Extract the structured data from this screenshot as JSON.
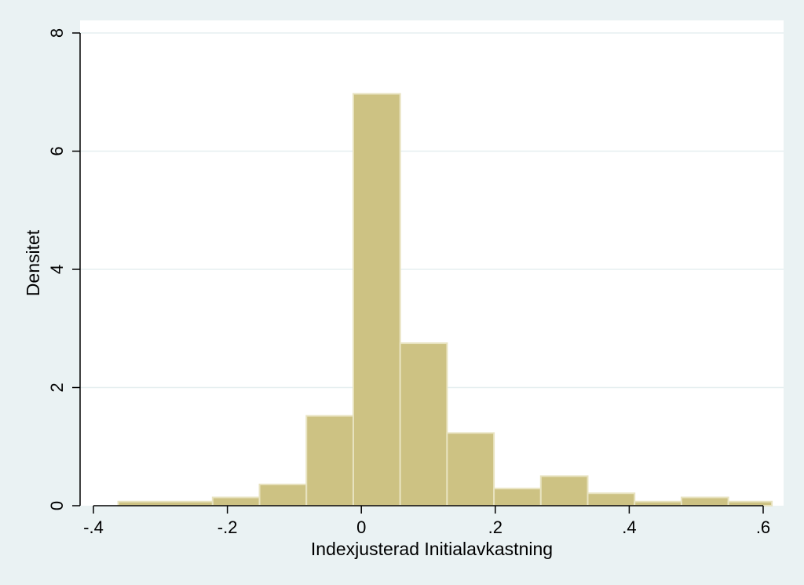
{
  "chart_data": {
    "type": "bar",
    "title": "",
    "xlabel": "Indexjusterad Initialavkastning",
    "ylabel": "Densitet",
    "xlim": [
      -0.4,
      0.6
    ],
    "ylim": [
      0,
      8
    ],
    "x_ticks": [
      {
        "value": -0.4,
        "label": "-.4"
      },
      {
        "value": -0.2,
        "label": "-.2"
      },
      {
        "value": 0,
        "label": "0"
      },
      {
        "value": 0.2,
        "label": ".2"
      },
      {
        "value": 0.4,
        "label": ".4"
      },
      {
        "value": 0.6,
        "label": ".6"
      }
    ],
    "y_ticks": [
      {
        "value": 0,
        "label": "0"
      },
      {
        "value": 2,
        "label": "2"
      },
      {
        "value": 4,
        "label": "4"
      },
      {
        "value": 6,
        "label": "6"
      },
      {
        "value": 8,
        "label": "8"
      }
    ],
    "grid": true,
    "bins": [
      {
        "x0": -0.363,
        "x1": -0.222,
        "density": 0.07
      },
      {
        "x0": -0.222,
        "x1": -0.152,
        "density": 0.14
      },
      {
        "x0": -0.152,
        "x1": -0.082,
        "density": 0.36
      },
      {
        "x0": -0.082,
        "x1": -0.012,
        "density": 1.52
      },
      {
        "x0": -0.012,
        "x1": 0.058,
        "density": 6.97
      },
      {
        "x0": 0.058,
        "x1": 0.128,
        "density": 2.75
      },
      {
        "x0": 0.128,
        "x1": 0.198,
        "density": 1.23
      },
      {
        "x0": 0.198,
        "x1": 0.268,
        "density": 0.29
      },
      {
        "x0": 0.268,
        "x1": 0.338,
        "density": 0.5
      },
      {
        "x0": 0.338,
        "x1": 0.408,
        "density": 0.21
      },
      {
        "x0": 0.408,
        "x1": 0.478,
        "density": 0.07
      },
      {
        "x0": 0.478,
        "x1": 0.548,
        "density": 0.14
      },
      {
        "x0": 0.548,
        "x1": 0.613,
        "density": 0.07
      }
    ],
    "colors": {
      "bar_fill": "#cdc283",
      "bar_stroke": "#e8e3c0",
      "plot_bg": "#ffffff",
      "outer_bg": "#eaf2f3",
      "grid": "#e6eff0",
      "axis": "#000000"
    }
  }
}
